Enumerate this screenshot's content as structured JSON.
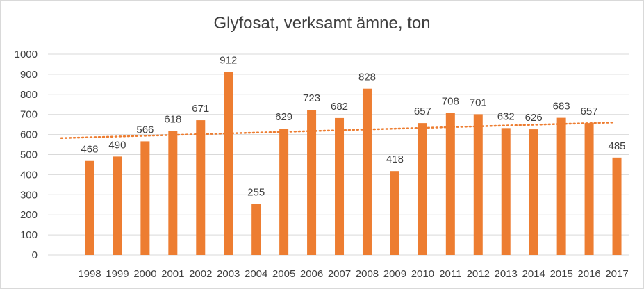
{
  "chart_data": {
    "type": "bar",
    "title": "Glyfosat, verksamt ämne, ton",
    "xlabel": "",
    "ylabel": "",
    "categories": [
      "1998",
      "1999",
      "2000",
      "2001",
      "2002",
      "2003",
      "2004",
      "2005",
      "2006",
      "2007",
      "2008",
      "2009",
      "2010",
      "2011",
      "2012",
      "2013",
      "2014",
      "2015",
      "2016",
      "2017"
    ],
    "values": [
      468,
      490,
      566,
      618,
      671,
      912,
      255,
      629,
      723,
      682,
      828,
      418,
      657,
      708,
      701,
      632,
      626,
      683,
      657,
      485
    ],
    "ylim": [
      0,
      1000
    ],
    "yticks": [
      0,
      100,
      200,
      300,
      400,
      500,
      600,
      700,
      800,
      900,
      1000
    ],
    "grid": true,
    "legend": "none",
    "data_labels": true,
    "trendline": {
      "type": "linear",
      "style": "dotted",
      "from": 582,
      "to": 660
    },
    "colors": {
      "bar": "#ED7D31",
      "trendline": "#ED7D31",
      "grid": "#d9d9d9",
      "text": "#404040"
    }
  }
}
